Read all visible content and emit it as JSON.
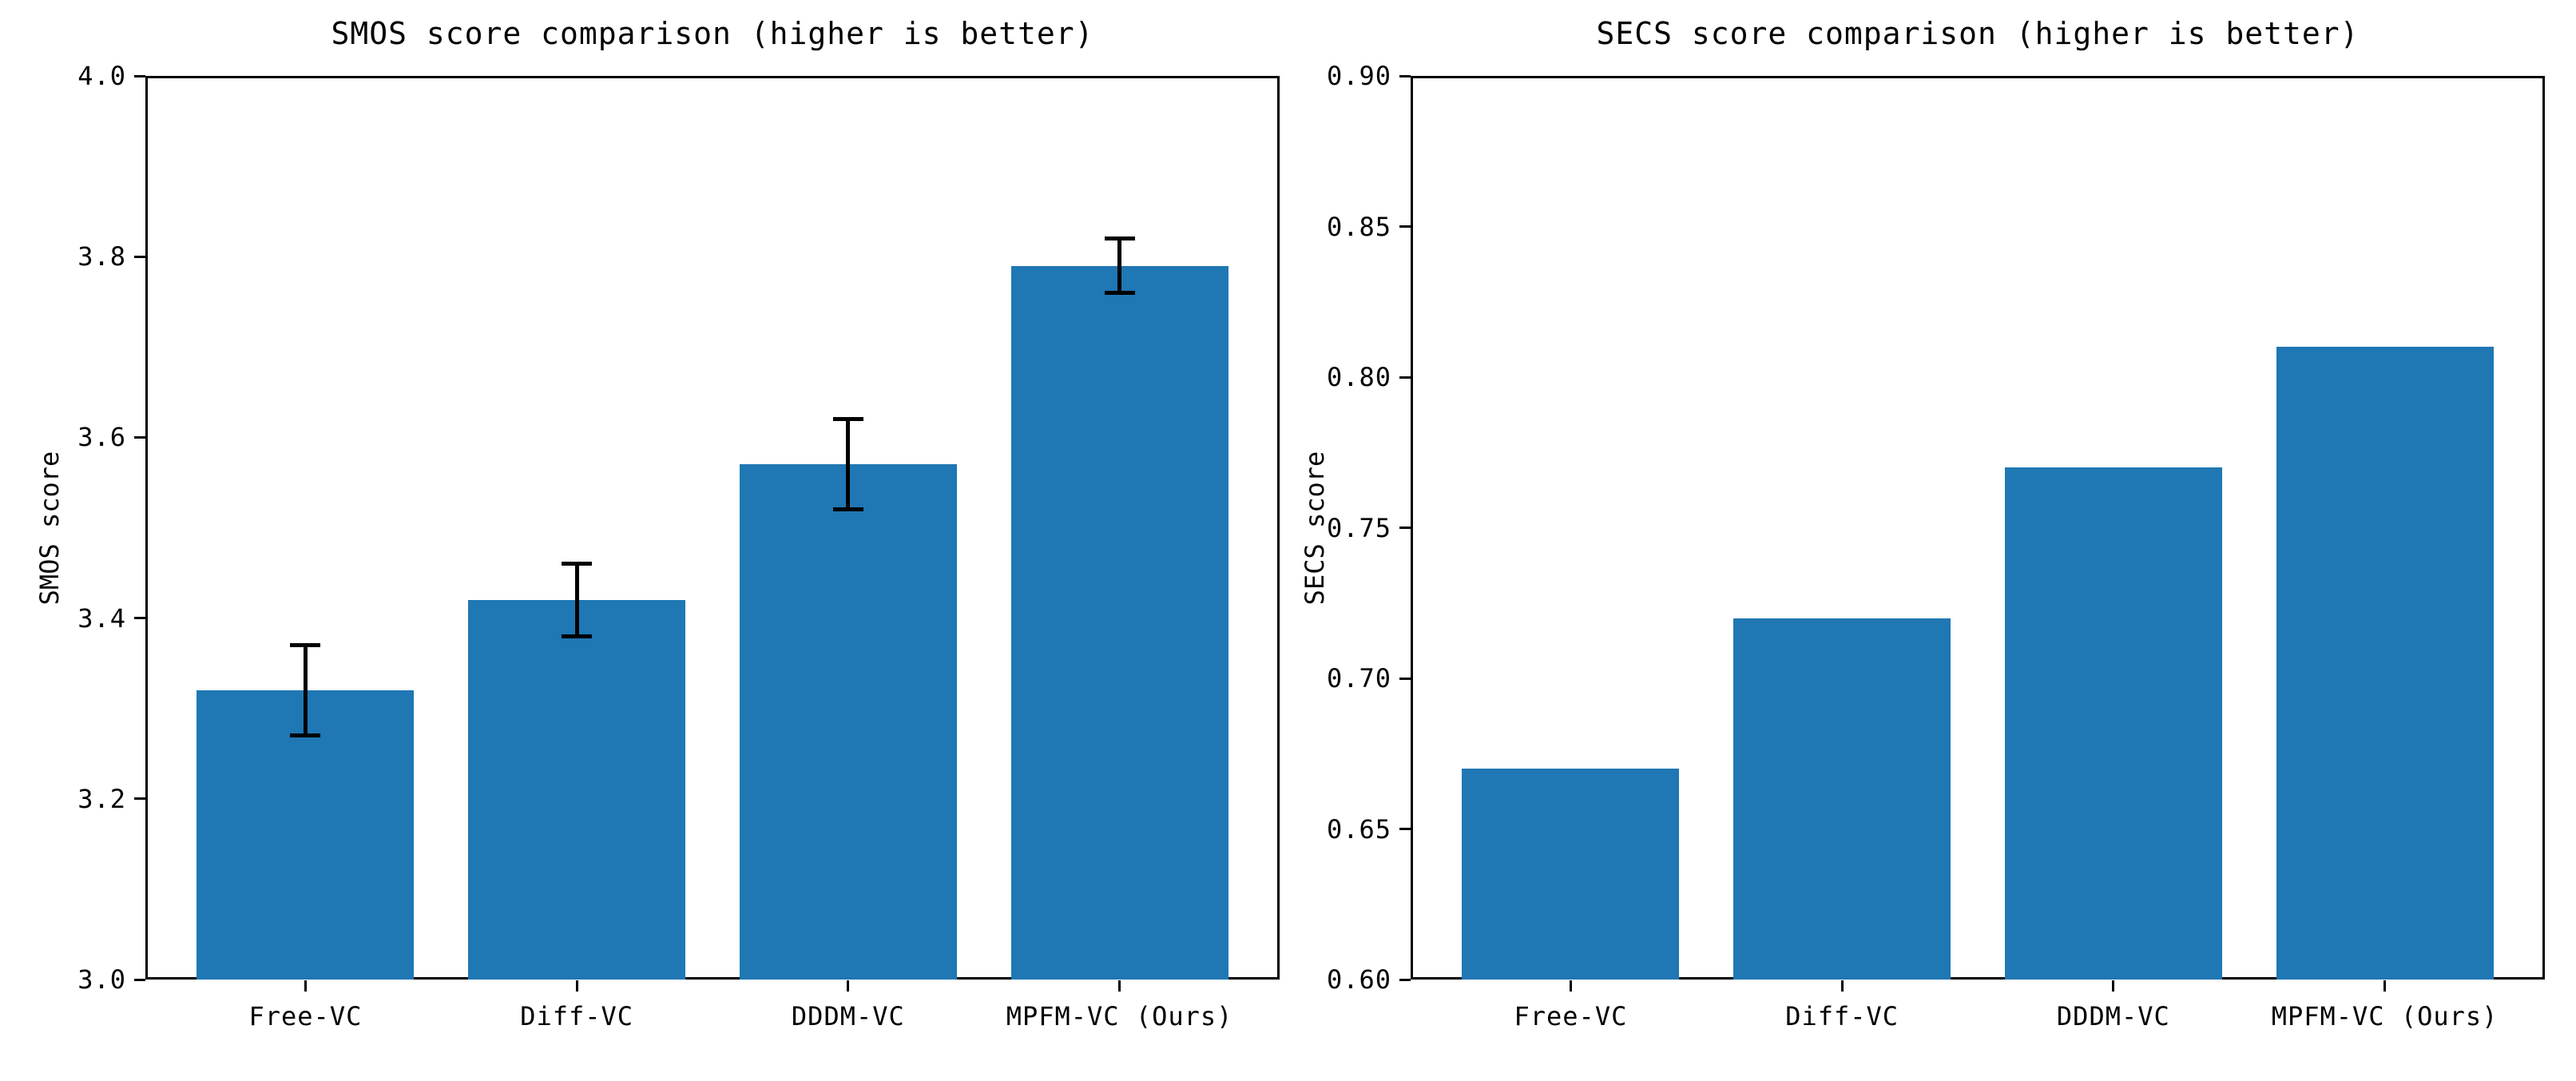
{
  "figure": {
    "background": "#ffffff",
    "text_color": "#000000"
  },
  "chart_data": [
    {
      "type": "bar",
      "title": "SMOS score comparison (higher is better)",
      "ylabel": "SMOS score",
      "xlabel": "",
      "categories": [
        "Free-VC",
        "Diff-VC",
        "DDDM-VC",
        "MPFM-VC (Ours)"
      ],
      "values": [
        3.32,
        3.42,
        3.57,
        3.79
      ],
      "errors": [
        0.05,
        0.04,
        0.05,
        0.03
      ],
      "ylim": [
        3.0,
        4.0
      ],
      "yticks": [
        "3.0",
        "3.2",
        "3.4",
        "3.6",
        "3.8",
        "4.0"
      ],
      "bar_color": "#1f77b4",
      "error_color": "#000000",
      "grid": false,
      "legend": null
    },
    {
      "type": "bar",
      "title": "SECS score comparison (higher is better)",
      "ylabel": "SECS score",
      "xlabel": "",
      "categories": [
        "Free-VC",
        "Diff-VC",
        "DDDM-VC",
        "MPFM-VC (Ours)"
      ],
      "values": [
        0.67,
        0.72,
        0.77,
        0.81
      ],
      "errors": null,
      "ylim": [
        0.6,
        0.9
      ],
      "yticks": [
        "0.60",
        "0.65",
        "0.70",
        "0.75",
        "0.80",
        "0.85",
        "0.90"
      ],
      "bar_color": "#1f77b4",
      "error_color": "#000000",
      "grid": false,
      "legend": null
    }
  ]
}
